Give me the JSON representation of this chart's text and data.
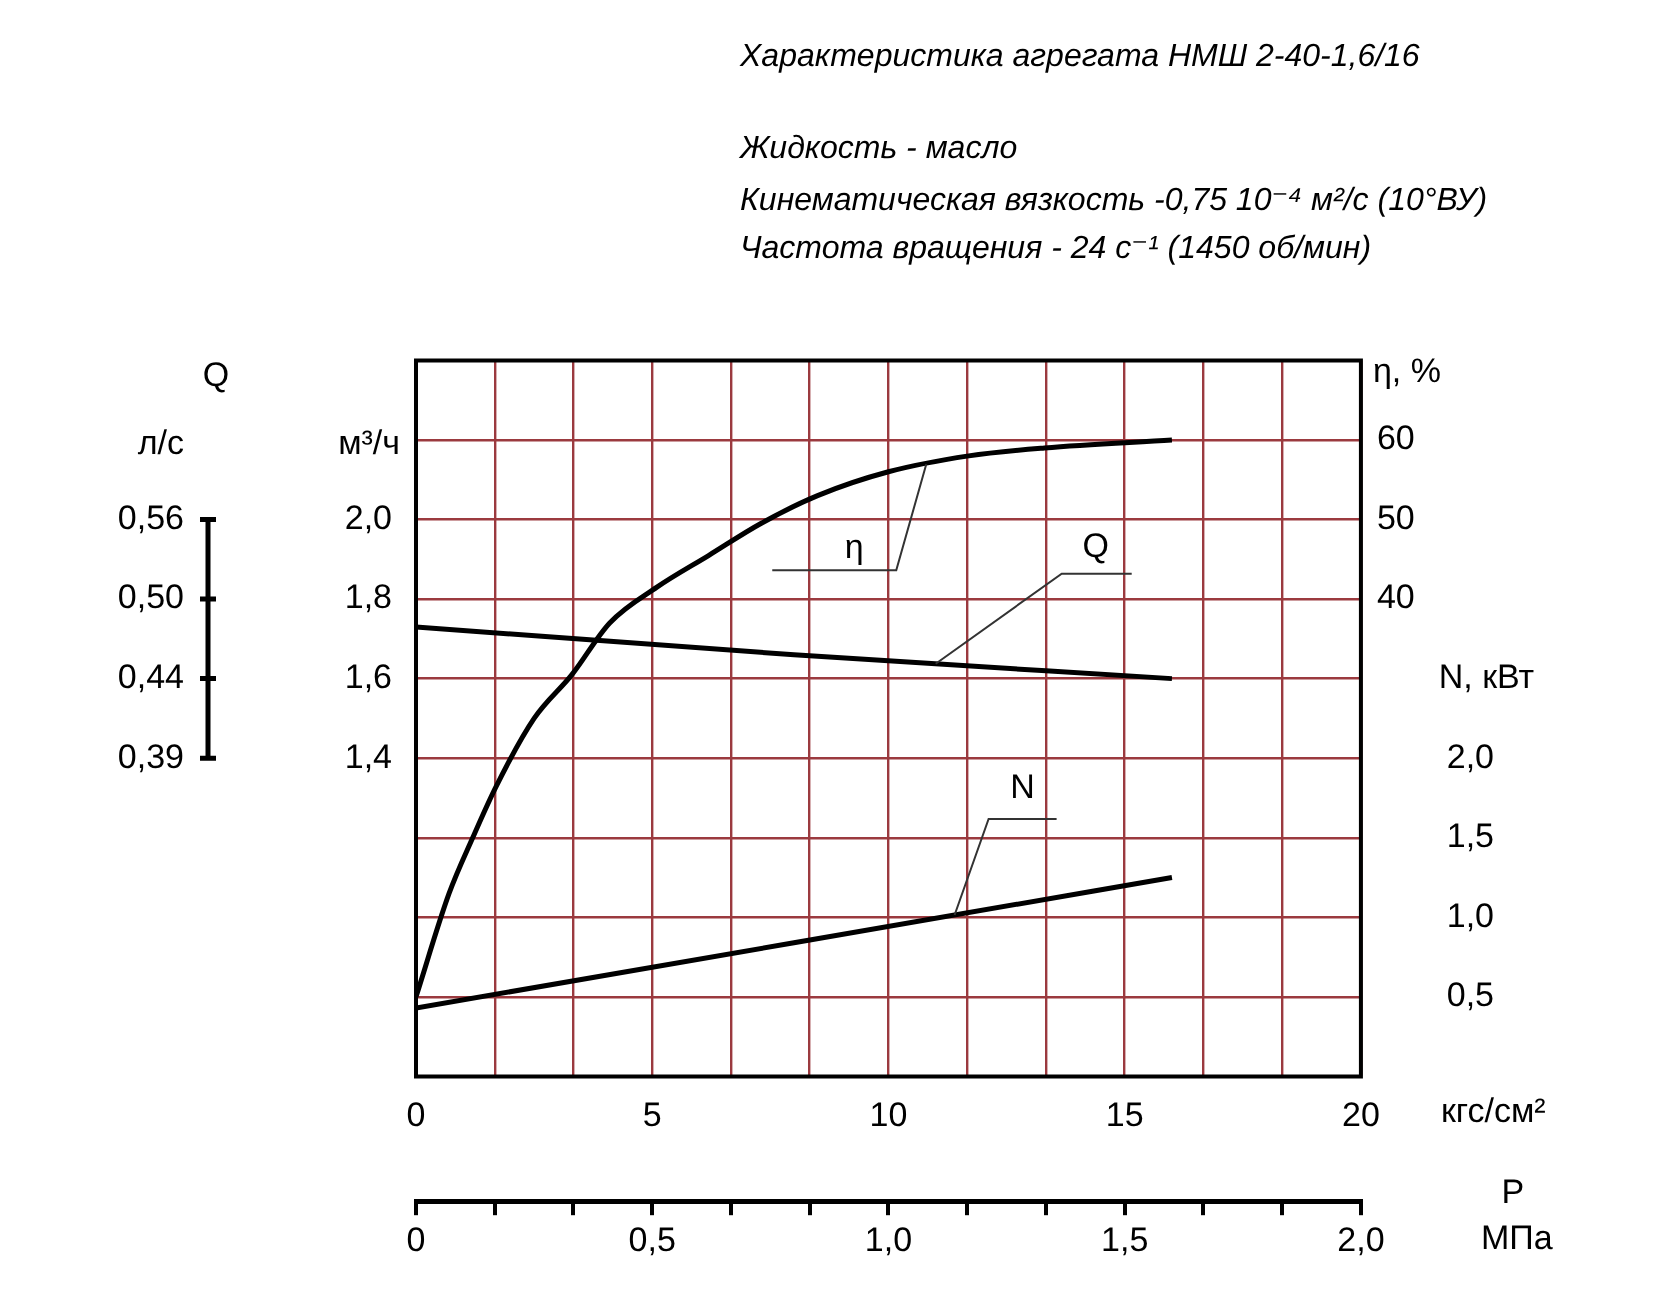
{
  "chart_data": {
    "type": "line",
    "title": "Характеристика агрегата НМШ 2-40-1,6/16",
    "subtitle": "Жидкость - масло",
    "annotations": [
      "Кинематическая вязкость -0,75 10⁻⁴ м²/с (10°ВУ)",
      "Частота вращения - 24 с⁻¹ (1450 об/мин)",
      "Q",
      "P",
      "л/с",
      "0,56",
      "0,50",
      "0,44",
      "0,39"
    ],
    "xlabel": "кгс/см²",
    "x2label": "МПа",
    "ylabel": "м³/ч",
    "y2label": "η, %",
    "y3label": "N, кВт",
    "xlim": [
      0,
      20
    ],
    "xticks": [
      0,
      {
        "value": 1.667,
        "label": null
      },
      {
        "value": 3.333,
        "label": null
      },
      5,
      {
        "value": 6.667,
        "label": null
      },
      {
        "value": 8.333,
        "label": null
      },
      10,
      {
        "value": 11.667,
        "label": null
      },
      {
        "value": 13.333,
        "label": null
      },
      15,
      {
        "value": 16.667,
        "label": null
      },
      {
        "value": 18.333,
        "label": null
      },
      20
    ],
    "x2lim": [
      0,
      2
    ],
    "x2ticks": [
      0,
      {
        "value": 0.1667,
        "label": null
      },
      {
        "value": 0.3333,
        "label": null
      },
      {
        "value": 0.5,
        "label": "0,5"
      },
      {
        "value": 0.6667,
        "label": null
      },
      {
        "value": 0.8333,
        "label": null
      },
      {
        "value": 1,
        "label": "1,0"
      },
      {
        "value": 1.1667,
        "label": null
      },
      {
        "value": 1.3333,
        "label": null
      },
      {
        "value": 1.5,
        "label": "1,5"
      },
      {
        "value": 1.6667,
        "label": null
      },
      {
        "value": 1.8333,
        "label": null
      },
      {
        "value": 2,
        "label": "2,0"
      }
    ],
    "ylim": [
      0.6,
      2.4
    ],
    "yticks": [
      {
        "value": 0.8,
        "label": null
      },
      {
        "value": 1,
        "label": null
      },
      {
        "value": 1.2,
        "label": null
      },
      {
        "value": 1.4,
        "label": "1,4"
      },
      {
        "value": 1.6,
        "label": "1,6"
      },
      {
        "value": 1.8,
        "label": "1,8"
      },
      {
        "value": 2,
        "label": "2,0"
      },
      {
        "value": 2.2,
        "label": null
      }
    ],
    "y2lim": [
      -20,
      70
    ],
    "y2ticks": [
      40,
      50,
      60
    ],
    "y3lim": [
      0,
      4.5
    ],
    "y3ticks": [
      {
        "value": 0.5,
        "label": "0,5"
      },
      {
        "value": 1,
        "label": "1,0"
      },
      {
        "value": 1.5,
        "label": "1,5"
      },
      {
        "value": 2,
        "label": "2,0"
      }
    ],
    "grid": true,
    "legend": false,
    "marker": "none",
    "line_style": "solid",
    "series": [
      {
        "name": "η",
        "color": "#000000",
        "axis": "y2",
        "x": [
          0,
          0.7,
          1.2,
          1.7,
          2.5,
          3.3,
          4.1,
          5.1,
          6.2,
          7.3,
          8.5,
          10,
          11.7,
          13.3,
          16
        ],
        "values": [
          -10,
          3,
          10,
          16.5,
          25,
          30.5,
          37,
          41.5,
          45.5,
          49.5,
          53,
          56,
          58,
          59,
          60
        ]
      },
      {
        "name": "Q",
        "color": "#000000",
        "axis": "y",
        "x": [
          0,
          8,
          16
        ],
        "values": [
          1.73,
          1.66,
          1.6
        ]
      },
      {
        "name": "N",
        "color": "#000000",
        "axis": "y3",
        "x": [
          0,
          8,
          16
        ],
        "values": [
          0.43,
          0.84,
          1.25
        ]
      }
    ]
  }
}
